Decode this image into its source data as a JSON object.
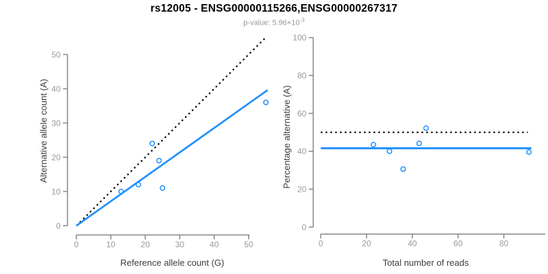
{
  "header": {
    "title": "rs12005 - ENSG00000115266,ENSG00000267317",
    "p_value_prefix": "p-value: 5.96×10",
    "p_value_exponent": "-3"
  },
  "colors": {
    "background": "#ffffff",
    "accent_blue": "#1E90FF",
    "identity_line": "#000000",
    "axis_line": "#8c8c8c",
    "tick_label": "#9a9a9a",
    "axis_label": "#3d3d3d",
    "title": "#000000",
    "subtitle": "#999999"
  },
  "chart_data": [
    {
      "type": "scatter",
      "panel": "allele-counts",
      "xlabel": "Reference allele count (G)",
      "ylabel": "Alternative allele count (A)",
      "xlim": [
        0,
        55.5
      ],
      "ylim": [
        0,
        55
      ],
      "xticks": [
        0,
        10,
        20,
        30,
        40,
        50
      ],
      "yticks": [
        0,
        10,
        20,
        30,
        40,
        50
      ],
      "grid": false,
      "legend": null,
      "points": [
        [
          13,
          10
        ],
        [
          18,
          12
        ],
        [
          22,
          24
        ],
        [
          24,
          19
        ],
        [
          25,
          11
        ],
        [
          55,
          36
        ]
      ],
      "lines": [
        {
          "name": "identity-line",
          "dash": "dotted",
          "color": "#000000",
          "width": 2.2,
          "from": [
            0,
            0
          ],
          "to": [
            55,
            55
          ]
        },
        {
          "name": "regression-line",
          "dash": "solid",
          "color": "#1E90FF",
          "width": 2.7,
          "from": [
            0,
            0
          ],
          "to": [
            55.5,
            39.6
          ]
        }
      ]
    },
    {
      "type": "scatter",
      "panel": "percentage-vs-reads",
      "xlabel": "Total number of reads",
      "ylabel": "Percentage alternative (A)",
      "xlim": [
        0,
        98
      ],
      "ylim": [
        0,
        100
      ],
      "xticks": [
        0,
        20,
        40,
        60,
        80
      ],
      "yticks": [
        0,
        20,
        40,
        60,
        80,
        100
      ],
      "grid": false,
      "legend": null,
      "points": [
        [
          23,
          43.5
        ],
        [
          30,
          40
        ],
        [
          36,
          30.6
        ],
        [
          43,
          44.2
        ],
        [
          46,
          52.2
        ],
        [
          91,
          39.6
        ]
      ],
      "lines": [
        {
          "name": "expected-50-percent-line",
          "dash": "dotted",
          "color": "#000000",
          "width": 2.2,
          "from": [
            0,
            50
          ],
          "to": [
            90.5,
            50
          ]
        },
        {
          "name": "mean-percentage-line",
          "dash": "solid",
          "color": "#1E90FF",
          "width": 2.9,
          "from": [
            0,
            41.6
          ],
          "to": [
            92,
            41.6
          ]
        }
      ]
    }
  ]
}
